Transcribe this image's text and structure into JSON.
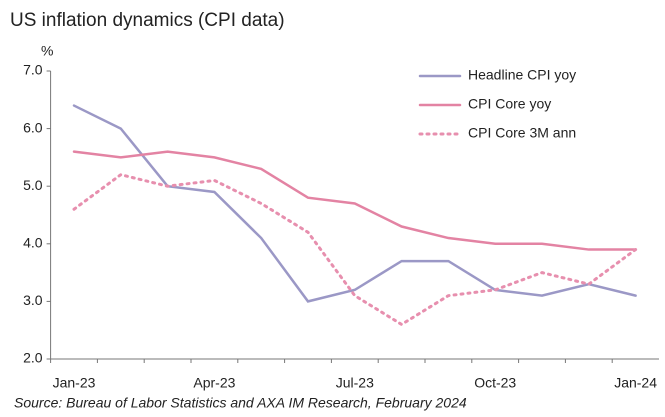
{
  "chart_data": {
    "type": "line",
    "title": "US inflation dynamics (CPI data)",
    "y_unit": "%",
    "source": "Source: Bureau of Labor Statistics and AXA IM Research, February 2024",
    "categories": [
      "Jan-23",
      null,
      null,
      "Apr-23",
      null,
      null,
      "Jul-23",
      null,
      null,
      "Oct-23",
      null,
      null,
      "Jan-24"
    ],
    "series": [
      {
        "name": "Headline CPI yoy",
        "color": "#9b98c6",
        "style": "solid",
        "values": [
          6.4,
          6.0,
          5.0,
          4.9,
          4.1,
          3.0,
          3.2,
          3.7,
          3.7,
          3.2,
          3.1,
          3.3,
          3.1
        ]
      },
      {
        "name": "CPI Core yoy",
        "color": "#e383a3",
        "style": "solid",
        "values": [
          5.6,
          5.5,
          5.6,
          5.5,
          5.3,
          4.8,
          4.7,
          4.3,
          4.1,
          4.0,
          4.0,
          3.9,
          3.9
        ]
      },
      {
        "name": "CPI Core 3M ann",
        "color": "#e78fae",
        "style": "dotted",
        "values": [
          4.6,
          5.2,
          5.0,
          5.1,
          4.7,
          4.2,
          3.1,
          2.6,
          3.1,
          3.2,
          3.5,
          3.3,
          3.9
        ]
      }
    ],
    "ylim": [
      2,
      7
    ],
    "yticks": [
      {
        "value": 2,
        "label": "2.0"
      },
      {
        "value": 3,
        "label": "3.0"
      },
      {
        "value": 4,
        "label": "4.0"
      },
      {
        "value": 5,
        "label": "5.0"
      },
      {
        "value": 6,
        "label": "6.0"
      },
      {
        "value": 7,
        "label": "7.0"
      }
    ],
    "grid": false,
    "legend": "top-right"
  }
}
